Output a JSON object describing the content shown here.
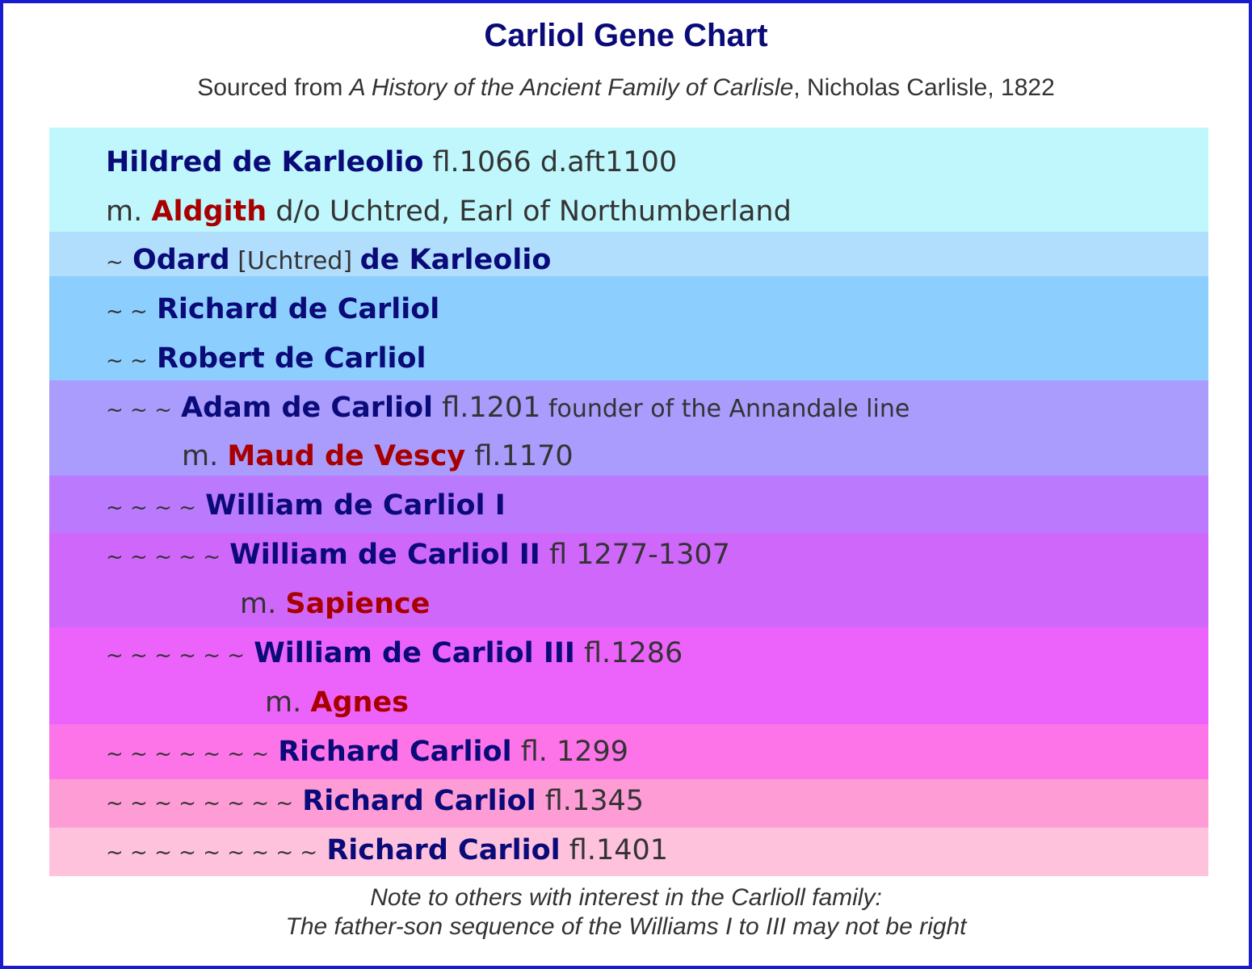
{
  "header": {
    "title": "Carliol Gene Chart",
    "subtitle_pre": "Sourced from ",
    "subtitle_book": "A History of the Ancient Family of Carlisle",
    "subtitle_post": ", Nicholas Carlisle, 1822"
  },
  "colors": {
    "border": "#1a1ad0",
    "name": "#0a0a78",
    "spouse": "#a80000",
    "bands": [
      "#bff7fd",
      "#b2defe",
      "#8ccefe",
      "#a99cfd",
      "#bb7afd",
      "#d067fb",
      "#ec63fb",
      "#fd74e8",
      "#fe9dd5",
      "#ffc2dd"
    ]
  },
  "chart": {
    "hildred": {
      "name": "Hildred de Karleolio",
      "detail": " fl.1066 d.aft1100"
    },
    "aldgith": {
      "prefix": "m. ",
      "spouse": "Aldgith",
      "detail": " d/o Uchtred, Earl of Northumberland"
    },
    "odard": {
      "tildes": "~",
      "name": "Odard",
      "alias": " [Uchtred] ",
      "name2": "de Karleolio"
    },
    "richard1": {
      "tildes": "~ ~",
      "name": "Richard de Carliol"
    },
    "robert": {
      "tildes": "~ ~",
      "name": "Robert de Carliol"
    },
    "adam": {
      "tildes": "~ ~ ~",
      "name": "Adam de Carliol",
      "detail": " fl.1201",
      "note": " founder of the Annandale line"
    },
    "maud": {
      "prefix": "m. ",
      "spouse": "Maud de Vescy",
      "detail": " fl.1170"
    },
    "william1": {
      "tildes": "~ ~ ~ ~",
      "name": "William de Carliol I"
    },
    "william2": {
      "tildes": "~ ~ ~ ~ ~",
      "name": "William de Carliol II",
      "detail": " fl 1277-1307"
    },
    "sapience": {
      "prefix": "m. ",
      "spouse": "Sapience"
    },
    "william3": {
      "tildes": "~ ~ ~ ~ ~ ~",
      "name": "William de Carliol III",
      "detail": " fl.1286"
    },
    "agnes": {
      "prefix": "m. ",
      "spouse": "Agnes"
    },
    "richard2": {
      "tildes": "~ ~ ~ ~ ~ ~ ~",
      "name": "Richard Carliol",
      "detail": " fl. 1299"
    },
    "richard3": {
      "tildes": "~ ~ ~ ~ ~ ~ ~ ~",
      "name": "Richard Carliol",
      "detail": " fl.1345"
    },
    "richard4": {
      "tildes": "~ ~ ~ ~ ~ ~ ~ ~ ~",
      "name": "Richard Carliol",
      "detail": " fl.1401"
    }
  },
  "footer": {
    "note1": "Note to others with interest in the Carlioll family:",
    "note2": "The father-son sequence of the Williams I to III may not be right"
  }
}
